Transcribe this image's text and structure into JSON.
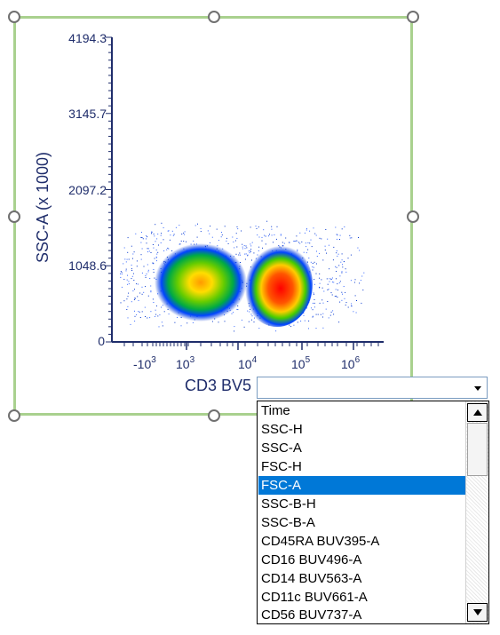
{
  "chart_data": {
    "type": "scatter",
    "ylabel": "SSC-A (x 1000)",
    "xlabel": "CD3 BV5",
    "y_ticks": [
      "4194.3",
      "3145.7",
      "2097.2",
      "1048.6",
      "0"
    ],
    "x_ticks": [
      {
        "base": "-10",
        "exp": "3"
      },
      {
        "base": "10",
        "exp": "3"
      },
      {
        "base": "10",
        "exp": "4"
      },
      {
        "base": "10",
        "exp": "5"
      },
      {
        "base": "10",
        "exp": "6"
      }
    ],
    "ylim": [
      0,
      4194.3
    ],
    "x_scale": "biexponential",
    "populations": [
      {
        "name": "",
        "x_center_decade": 2.9,
        "y_center": 780,
        "density": "medium"
      },
      {
        "name": "",
        "x_center_decade": 4.6,
        "y_center": 720,
        "density": "high"
      }
    ],
    "colors": {
      "axis": "#1f2d6b",
      "frame": "#a9d18e"
    }
  },
  "dropdown": {
    "selected_value": "",
    "items": [
      "Time",
      "SSC-H",
      "SSC-A",
      "FSC-H",
      "FSC-A",
      "SSC-B-H",
      "SSC-B-A",
      "CD45RA BUV395-A",
      "CD16 BUV496-A",
      "CD14 BUV563-A",
      "CD11c BUV661-A",
      "CD56 BUV737-A"
    ],
    "selected_index": 4,
    "selected_color": "#0078d7"
  }
}
